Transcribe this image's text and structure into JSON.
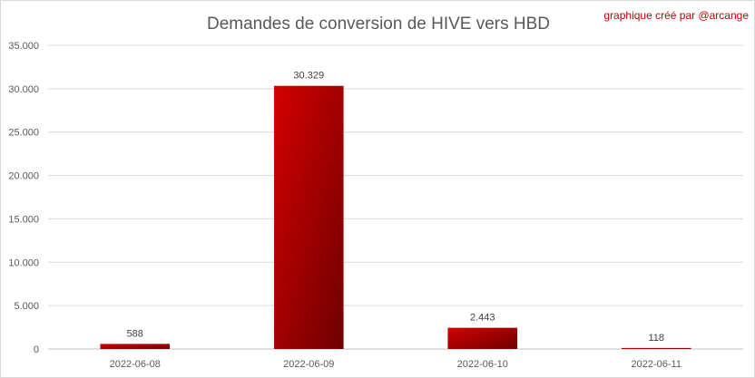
{
  "chart_data": {
    "type": "bar",
    "title": "Demandes de conversion de HIVE vers HBD",
    "credit": "graphique créé par @arcange",
    "categories": [
      "2022-06-08",
      "2022-06-09",
      "2022-06-10",
      "2022-06-11"
    ],
    "values": [
      588,
      30329,
      2443,
      118
    ],
    "value_labels": [
      "588",
      "30.329",
      "2.443",
      "118"
    ],
    "ylim": [
      0,
      35000
    ],
    "yticks": [
      0,
      5000,
      10000,
      15000,
      20000,
      25000,
      30000,
      35000
    ],
    "ytick_labels": [
      "0",
      "5.000",
      "10.000",
      "15.000",
      "20.000",
      "25.000",
      "30.000",
      "35.000"
    ],
    "grid": true,
    "legend": "none",
    "colors": {
      "bar_light": "#d40000",
      "bar_dark": "#6e0000",
      "credit": "#c00000"
    }
  }
}
